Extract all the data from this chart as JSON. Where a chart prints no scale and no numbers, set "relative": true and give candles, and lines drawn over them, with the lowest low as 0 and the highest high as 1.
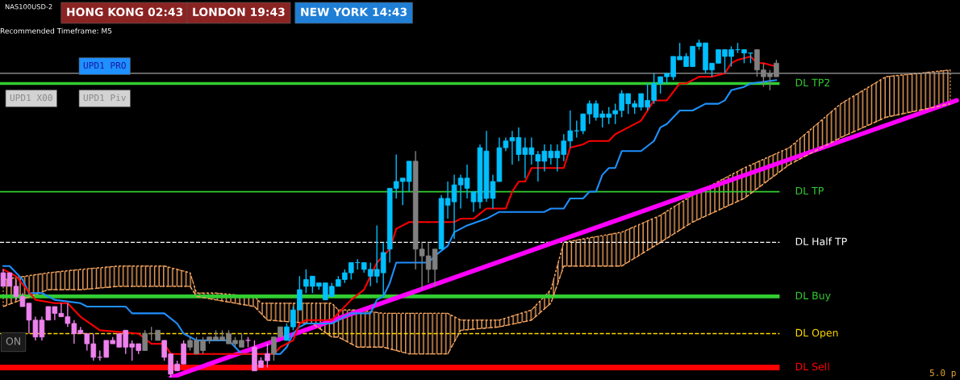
{
  "chart_data": {
    "type": "candlestick",
    "relative": true,
    "title": "NAS100USD-2",
    "annotations": [
      "Recommended Timeframe: M5",
      "HONG KONG 02:43",
      "LONDON 19:43",
      "NEW YORK 14:43",
      "UPD1 PRO",
      "UPD1 X00",
      "UPD1 Piv",
      "ON",
      "5.0 p"
    ],
    "categories": [
      null,
      null,
      null,
      null,
      null,
      null,
      null,
      null,
      null,
      null,
      null,
      null,
      null,
      null,
      null,
      null,
      null,
      null,
      null,
      null,
      null,
      null,
      null,
      null,
      null,
      null,
      null,
      null,
      null,
      null,
      null,
      null,
      null,
      null,
      null,
      null,
      null,
      null,
      null,
      null,
      null,
      null,
      null,
      null,
      null,
      null,
      null,
      null,
      null,
      null,
      null,
      null,
      null,
      null,
      null,
      null,
      null,
      null,
      null,
      null,
      null,
      null,
      null,
      null,
      null,
      null,
      null,
      null,
      null,
      null,
      null,
      null,
      null,
      null,
      null,
      null,
      null,
      null,
      null,
      null,
      null,
      null,
      null,
      null,
      null,
      null,
      null,
      null,
      null,
      null,
      null,
      null,
      null,
      null,
      null,
      null,
      null,
      null,
      null,
      null,
      null,
      null,
      null,
      null,
      null,
      null,
      null,
      null,
      null,
      null,
      null,
      null,
      null,
      null,
      null,
      null,
      null,
      null,
      null,
      null,
      null,
      null,
      null,
      null,
      null,
      null,
      null,
      null,
      null,
      null,
      null,
      null,
      null,
      null,
      null,
      null,
      null,
      null,
      null,
      null,
      null,
      null,
      null,
      null,
      null,
      null,
      null,
      null,
      null
    ],
    "ohlc": [
      [
        0.31,
        0.32,
        0.27,
        0.27
      ],
      [
        0.31,
        0.31,
        0.27,
        0.27
      ],
      [
        0.27,
        0.29,
        0.23,
        0.24
      ],
      [
        0.24,
        0.25,
        0.21,
        0.21
      ],
      [
        0.22,
        0.22,
        0.13,
        0.17
      ],
      [
        0.17,
        0.18,
        0.11,
        0.12
      ],
      [
        0.17,
        0.18,
        0.11,
        0.12
      ],
      [
        0.21,
        0.21,
        0.17,
        0.17
      ],
      [
        0.21,
        0.21,
        0.17,
        0.19
      ],
      [
        0.19,
        0.22,
        0.18,
        0.18
      ],
      [
        0.18,
        0.22,
        0.15,
        0.16
      ],
      [
        0.16,
        0.17,
        0.1,
        0.13
      ],
      [
        0.14,
        0.15,
        0.13,
        0.13
      ],
      [
        0.13,
        0.13,
        0.08,
        0.1
      ],
      [
        0.1,
        0.13,
        0.05,
        0.06
      ],
      [
        0.06,
        0.08,
        0.05,
        0.06
      ],
      [
        0.11,
        0.11,
        0.06,
        0.06
      ],
      [
        0.11,
        0.12,
        0.1,
        0.1
      ],
      [
        0.13,
        0.13,
        0.09,
        0.09
      ],
      [
        0.14,
        0.14,
        0.07,
        0.09
      ],
      [
        0.1,
        0.11,
        0.05,
        0.09
      ],
      [
        0.1,
        0.1,
        0.07,
        0.08
      ],
      [
        0.13,
        0.14,
        0.08,
        0.08
      ],
      [
        0.13,
        0.15,
        0.11,
        0.13
      ],
      [
        0.14,
        0.14,
        0.11,
        0.11
      ],
      [
        0.11,
        0.11,
        0.05,
        0.06
      ],
      [
        0.07,
        0.07,
        0.0,
        0.01
      ],
      [
        0.04,
        0.05,
        0.02,
        0.02
      ],
      [
        0.1,
        0.11,
        0.04,
        0.04
      ],
      [
        0.11,
        0.12,
        0.08,
        0.09
      ],
      [
        0.11,
        0.12,
        0.07,
        0.07
      ],
      [
        0.11,
        0.12,
        0.07,
        0.08
      ],
      [
        0.12,
        0.12,
        0.1,
        0.11
      ],
      [
        0.12,
        0.14,
        0.11,
        0.11
      ],
      [
        0.12,
        0.14,
        0.11,
        0.11
      ],
      [
        0.13,
        0.14,
        0.1,
        0.1
      ],
      [
        0.11,
        0.12,
        0.09,
        0.1
      ],
      [
        0.11,
        0.13,
        0.09,
        0.09
      ],
      [
        0.11,
        0.12,
        0.09,
        0.11
      ],
      [
        0.09,
        0.11,
        0.02,
        0.02
      ],
      [
        0.05,
        0.06,
        0.03,
        0.03
      ],
      [
        0.07,
        0.1,
        0.03,
        0.05
      ],
      [
        0.12,
        0.12,
        0.05,
        0.07
      ],
      [
        0.15,
        0.15,
        0.12,
        0.12
      ],
      [
        0.11,
        0.16,
        0.11,
        0.15
      ],
      [
        0.15,
        0.21,
        0.14,
        0.2
      ],
      [
        0.2,
        0.3,
        0.2,
        0.26
      ],
      [
        0.27,
        0.32,
        0.25,
        0.29
      ],
      [
        0.27,
        0.3,
        0.25,
        0.3
      ],
      [
        0.27,
        0.28,
        0.26,
        0.28
      ],
      [
        0.23,
        0.28,
        0.23,
        0.28
      ],
      [
        0.24,
        0.28,
        0.24,
        0.27
      ],
      [
        0.27,
        0.3,
        0.27,
        0.29
      ],
      [
        0.29,
        0.32,
        0.28,
        0.31
      ],
      [
        0.31,
        0.34,
        0.29,
        0.34
      ],
      [
        0.34,
        0.35,
        0.32,
        0.34
      ],
      [
        0.32,
        0.34,
        0.31,
        0.34
      ],
      [
        0.3,
        0.34,
        0.27,
        0.32
      ],
      [
        0.3,
        0.45,
        0.28,
        0.32
      ],
      [
        0.31,
        0.4,
        0.24,
        0.37
      ],
      [
        0.38,
        0.56,
        0.34,
        0.56
      ],
      [
        0.56,
        0.66,
        0.53,
        0.58
      ],
      [
        0.58,
        0.59,
        0.51,
        0.59
      ],
      [
        0.58,
        0.64,
        0.55,
        0.64
      ],
      [
        0.64,
        0.67,
        0.32,
        0.38
      ],
      [
        0.38,
        0.4,
        0.26,
        0.36
      ],
      [
        0.36,
        0.4,
        0.28,
        0.32
      ],
      [
        0.38,
        0.38,
        0.27,
        0.32
      ],
      [
        0.38,
        0.54,
        0.38,
        0.53
      ],
      [
        0.51,
        0.58,
        0.47,
        0.53
      ],
      [
        0.52,
        0.6,
        0.41,
        0.57
      ],
      [
        0.57,
        0.6,
        0.5,
        0.59
      ],
      [
        0.56,
        0.63,
        0.53,
        0.59
      ],
      [
        0.52,
        0.55,
        0.49,
        0.55
      ],
      [
        0.52,
        0.69,
        0.5,
        0.68
      ],
      [
        0.53,
        0.73,
        0.52,
        0.67
      ],
      [
        0.53,
        0.6,
        0.5,
        0.58
      ],
      [
        0.58,
        0.71,
        0.58,
        0.68
      ],
      [
        0.68,
        0.71,
        0.67,
        0.7
      ],
      [
        0.7,
        0.73,
        0.63,
        0.71
      ],
      [
        0.66,
        0.74,
        0.64,
        0.71
      ],
      [
        0.66,
        0.71,
        0.59,
        0.68
      ],
      [
        0.66,
        0.71,
        0.63,
        0.68
      ],
      [
        0.64,
        0.67,
        0.58,
        0.66
      ],
      [
        0.64,
        0.69,
        0.61,
        0.67
      ],
      [
        0.65,
        0.69,
        0.63,
        0.67
      ],
      [
        0.65,
        0.69,
        0.61,
        0.67
      ],
      [
        0.66,
        0.72,
        0.64,
        0.7
      ],
      [
        0.7,
        0.79,
        0.68,
        0.73
      ],
      [
        0.73,
        0.76,
        0.71,
        0.73
      ],
      [
        0.73,
        0.78,
        0.72,
        0.78
      ],
      [
        0.78,
        0.82,
        0.75,
        0.81
      ],
      [
        0.77,
        0.82,
        0.76,
        0.81
      ],
      [
        0.77,
        0.79,
        0.74,
        0.78
      ],
      [
        0.77,
        0.8,
        0.75,
        0.78
      ],
      [
        0.78,
        0.81,
        0.75,
        0.79
      ],
      [
        0.79,
        0.85,
        0.77,
        0.84
      ],
      [
        0.81,
        0.84,
        0.78,
        0.84
      ],
      [
        0.8,
        0.82,
        0.78,
        0.81
      ],
      [
        0.8,
        0.84,
        0.79,
        0.84
      ],
      [
        0.8,
        0.87,
        0.79,
        0.82
      ],
      [
        0.82,
        0.9,
        0.81,
        0.87
      ],
      [
        0.87,
        0.89,
        0.84,
        0.89
      ],
      [
        0.89,
        0.9,
        0.87,
        0.9
      ],
      [
        0.89,
        0.95,
        0.88,
        0.95
      ],
      [
        0.94,
        0.99,
        0.94,
        0.95
      ],
      [
        0.92,
        0.96,
        0.92,
        0.95
      ],
      [
        0.92,
        0.98,
        0.92,
        0.98
      ],
      [
        0.98,
        1.0,
        0.97,
        0.99
      ],
      [
        0.91,
        0.99,
        0.9,
        0.99
      ],
      [
        0.91,
        0.93,
        0.89,
        0.93
      ],
      [
        0.93,
        0.97,
        0.93,
        0.97
      ],
      [
        0.95,
        0.97,
        0.9,
        0.97
      ],
      [
        0.95,
        0.98,
        0.92,
        0.97
      ],
      [
        0.97,
        0.99,
        0.96,
        0.97
      ],
      [
        0.96,
        0.97,
        0.93,
        0.97
      ],
      [
        0.96,
        0.96,
        0.93,
        0.96
      ],
      [
        0.97,
        0.97,
        0.89,
        0.91
      ],
      [
        0.91,
        0.93,
        0.86,
        0.89
      ],
      [
        0.9,
        0.91,
        0.85,
        0.89
      ],
      [
        0.89,
        0.94,
        0.89,
        0.93
      ],
      null,
      null,
      null,
      null,
      null,
      null,
      null,
      null,
      null,
      null,
      null,
      null,
      null,
      null,
      null,
      null,
      null,
      null,
      null,
      null,
      null,
      null,
      null,
      null,
      null,
      null,
      null,
      null
    ],
    "colors": [
      "#ee82ee",
      "#ee82ee",
      "#ee82ee",
      "#ee82ee",
      "#ee82ee",
      "#ee82ee",
      "#ee82ee",
      "#ee82ee",
      "#ee82ee",
      "#ee82ee",
      "#ee82ee",
      "#ee82ee",
      "#ee82ee",
      "#ee82ee",
      "#ee82ee",
      "#ee82ee",
      "#ee82ee",
      "#ee82ee",
      "#ee82ee",
      "#ee82ee",
      "#ee82ee",
      "#ee82ee",
      "#808080",
      "#808080",
      "#808080",
      "#ee82ee",
      "#ee82ee",
      "#ee82ee",
      "#ee82ee",
      "#808080",
      "#808080",
      "#808080",
      "#808080",
      "#808080",
      "#808080",
      "#808080",
      "#808080",
      "#808080",
      "#ee82ee",
      "#ee82ee",
      "#ee82ee",
      "#ee82ee",
      "#808080",
      "#808080",
      "#00bfff",
      "#00bfff",
      "#00bfff",
      "#00bfff",
      "#00bfff",
      "#00bfff",
      "#00bfff",
      "#00bfff",
      "#00bfff",
      "#00bfff",
      "#00bfff",
      "#00bfff",
      "#00bfff",
      "#00bfff",
      "#00bfff",
      "#00bfff",
      "#00bfff",
      "#00bfff",
      "#00bfff",
      "#00bfff",
      "#808080",
      "#808080",
      "#808080",
      "#808080",
      "#00bfff",
      "#00bfff",
      "#00bfff",
      "#00bfff",
      "#00bfff",
      "#00bfff",
      "#00bfff",
      "#00bfff",
      "#00bfff",
      "#00bfff",
      "#00bfff",
      "#00bfff",
      "#00bfff",
      "#00bfff",
      "#00bfff",
      "#00bfff",
      "#00bfff",
      "#00bfff",
      "#00bfff",
      "#00bfff",
      "#00bfff",
      "#00bfff",
      "#00bfff",
      "#00bfff",
      "#00bfff",
      "#00bfff",
      "#00bfff",
      "#00bfff",
      "#00bfff",
      "#00bfff",
      "#00bfff",
      "#00bfff",
      "#00bfff",
      "#00bfff",
      "#00bfff",
      "#00bfff",
      "#00bfff",
      "#00bfff",
      "#00bfff",
      "#00bfff",
      "#00bfff",
      "#00bfff",
      "#00bfff",
      "#00bfff",
      "#00bfff",
      "#00bfff",
      "#00bfff",
      "#00bfff",
      "#00bfff",
      "#808080",
      "#808080",
      "#808080",
      "#808080",
      null,
      null,
      null,
      null,
      null,
      null,
      null,
      null,
      null,
      null,
      null,
      null,
      null,
      null,
      null,
      null,
      null,
      null,
      null,
      null,
      null,
      null,
      null,
      null,
      null,
      null,
      null,
      null
    ],
    "series": [
      {
        "type": "area",
        "color": "#f4a460",
        "values": [
          0.29,
          null,
          null,
          null,
          null,
          null,
          null,
          0.31,
          null,
          null,
          null,
          null,
          0.32,
          null,
          null,
          null,
          null,
          null,
          0.33,
          null,
          null,
          null,
          null,
          null,
          null,
          0.33,
          null,
          null,
          null,
          0.31,
          0.25,
          null,
          null,
          0.25,
          null,
          null,
          null,
          null,
          null,
          0.24,
          0.22,
          0.22,
          null,
          null,
          null,
          null,
          null,
          null,
          0.22,
          null,
          null,
          0.22,
          0.2,
          null,
          null,
          0.2,
          null,
          null,
          null,
          0.19,
          null,
          null,
          null,
          0.19,
          null,
          null,
          null,
          null,
          null,
          0.19,
          null,
          0.17,
          null,
          null,
          null,
          null,
          null,
          0.17,
          null,
          null,
          null,
          null,
          0.2,
          null,
          null,
          0.26,
          null,
          0.4,
          null,
          null,
          null,
          null,
          null,
          null,
          null,
          null,
          0.43,
          null,
          null,
          null,
          null,
          null,
          0.48,
          null,
          null,
          null,
          null,
          0.54,
          null,
          null,
          null,
          null,
          null,
          null,
          null,
          0.62,
          null,
          null,
          null,
          null,
          null,
          null,
          0.68,
          null,
          null,
          null,
          null,
          null,
          null,
          null,
          0.81,
          null,
          null,
          null,
          null,
          null,
          null,
          0.89,
          null,
          null,
          null,
          null,
          null,
          null,
          null,
          null,
          null,
          0.91,
          null
        ]
      },
      {
        "type": "line",
        "color": "#f4a460",
        "line_style": "dashed",
        "values": [
          0.21,
          null,
          null,
          null,
          null,
          null,
          null,
          0.26,
          null,
          null,
          null,
          null,
          0.26,
          null,
          null,
          null,
          null,
          null,
          0.27,
          null,
          null,
          null,
          null,
          null,
          null,
          0.27,
          null,
          null,
          null,
          0.27,
          0.24,
          null,
          null,
          0.23,
          null,
          null,
          null,
          null,
          null,
          0.21,
          0.19,
          0.17,
          null,
          null,
          null,
          null,
          null,
          null,
          0.16,
          null,
          null,
          0.12,
          0.12,
          null,
          null,
          0.09,
          null,
          null,
          null,
          0.09,
          null,
          null,
          null,
          0.07,
          null,
          null,
          null,
          null,
          null,
          0.07,
          null,
          0.14,
          null,
          null,
          null,
          null,
          null,
          0.15,
          null,
          null,
          null,
          null,
          0.17,
          null,
          null,
          0.22,
          null,
          0.33,
          null,
          null,
          null,
          null,
          null,
          null,
          null,
          null,
          0.33,
          null,
          null,
          null,
          null,
          null,
          0.4,
          null,
          null,
          null,
          null,
          0.46,
          null,
          null,
          null,
          null,
          null,
          null,
          null,
          0.53,
          null,
          null,
          null,
          null,
          null,
          null,
          0.63,
          null,
          null,
          null,
          null,
          null,
          null,
          null,
          0.71,
          null,
          null,
          null,
          null,
          null,
          null,
          0.77,
          null,
          null,
          null,
          null,
          null,
          null,
          null,
          null,
          null,
          0.81,
          null
        ]
      },
      {
        "type": "line",
        "color": "#ff00ff",
        "values": [
          null,
          null,
          null,
          null,
          null,
          null,
          null,
          null,
          null,
          null,
          null,
          null,
          null,
          null,
          null,
          null,
          null,
          null,
          null,
          null,
          null,
          null,
          null,
          null,
          null,
          null,
          0.0,
          null,
          null,
          null,
          null,
          null,
          null,
          null,
          null,
          null,
          null,
          null,
          null,
          null,
          null,
          null,
          null,
          null,
          null,
          null,
          null,
          null,
          null,
          null,
          null,
          null,
          null,
          null,
          null,
          null,
          null,
          null,
          null,
          null,
          null,
          null,
          null,
          null,
          null,
          null,
          null,
          null,
          null,
          null,
          null,
          null,
          null,
          null,
          null,
          null,
          null,
          null,
          null,
          null,
          null,
          null,
          null,
          null,
          null,
          null,
          null,
          null,
          null,
          null,
          null,
          null,
          null,
          null,
          null,
          null,
          null,
          null,
          null,
          null,
          null,
          null,
          null,
          null,
          null,
          null,
          null,
          null,
          null,
          null,
          null,
          null,
          null,
          null,
          null,
          null,
          null,
          null,
          null,
          null,
          null,
          null,
          null,
          null,
          null,
          null,
          null,
          null,
          null,
          null,
          null,
          null,
          null,
          null,
          null,
          null,
          null,
          null,
          null,
          null,
          null,
          null,
          null,
          null,
          null,
          null,
          null,
          null,
          0.82
        ]
      },
      {
        "type": "line",
        "color": "#1e90ff",
        "values": [
          0.33,
          0.33,
          0.31,
          0.29,
          0.25,
          null,
          0.25,
          0.24,
          0.23,
          null,
          null,
          null,
          0.22,
          0.21,
          null,
          null,
          null,
          null,
          null,
          0.21,
          0.19,
          null,
          null,
          null,
          0.19,
          0.19,
          null,
          0.16,
          0.13,
          null,
          0.11,
          null,
          null,
          null,
          null,
          0.11,
          0.09,
          0.07,
          null,
          null,
          null,
          null,
          null,
          0.07,
          0.09,
          0.13,
          0.15,
          0.16,
          null,
          null,
          null,
          0.16,
          null,
          0.18,
          0.19,
          null,
          null,
          0.19,
          0.23,
          0.24,
          0.28,
          0.34,
          null,
          null,
          null,
          null,
          0.34,
          0.36,
          null,
          0.39,
          0.43,
          null,
          0.45,
          null,
          null,
          0.47,
          null,
          0.49,
          null,
          null,
          0.49,
          null,
          null,
          null,
          0.49,
          0.5,
          null,
          0.5,
          0.53,
          null,
          0.53,
          0.55,
          0.55,
          0.6,
          0.62,
          0.62,
          0.67,
          null,
          null,
          0.67,
          null,
          0.7,
          0.74,
          0.75,
          null,
          0.79,
          null,
          0.79,
          null,
          0.81,
          null,
          0.81,
          0.82,
          0.85,
          null,
          0.86,
          0.87,
          null,
          null,
          null,
          0.88,
          null,
          null,
          null,
          null,
          null,
          null,
          null,
          null,
          null,
          null,
          null,
          null,
          null,
          null,
          null,
          null,
          null,
          null,
          null,
          null,
          null,
          null,
          null,
          null,
          null,
          null,
          null,
          null
        ]
      },
      {
        "type": "line",
        "color": "#ff0000",
        "values": [
          0.32,
          null,
          0.3,
          null,
          null,
          0.23,
          null,
          null,
          0.22,
          null,
          0.22,
          0.2,
          0.18,
          null,
          null,
          0.14,
          null,
          null,
          null,
          null,
          null,
          0.13,
          null,
          0.1,
          null,
          0.1,
          0.07,
          null,
          null,
          null,
          null,
          null,
          null,
          null,
          null,
          null,
          null,
          null,
          null,
          null,
          null,
          null,
          0.07,
          0.09,
          null,
          0.11,
          0.16,
          0.17,
          null,
          null,
          null,
          0.17,
          0.19,
          null,
          0.23,
          null,
          0.26,
          0.3,
          0.34,
          null,
          0.38,
          0.44,
          null,
          0.46,
          null,
          null,
          null,
          null,
          null,
          null,
          0.46,
          0.47,
          null,
          0.47,
          null,
          0.5,
          null,
          null,
          0.5,
          0.55,
          0.58,
          0.58,
          0.62,
          null,
          null,
          null,
          null,
          0.62,
          0.68,
          null,
          0.69,
          0.7,
          null,
          null,
          0.7,
          0.72,
          0.73,
          null,
          null,
          0.76,
          null,
          0.82,
          null,
          0.82,
          null,
          0.87,
          0.87,
          null,
          0.89,
          null,
          0.89,
          null,
          0.9,
          0.93,
          0.94,
          null,
          0.95,
          0.93,
          0.93,
          null,
          0.92,
          null,
          null,
          null,
          null,
          null,
          null,
          null,
          null,
          null,
          null,
          null,
          null,
          null,
          null,
          null,
          null,
          null,
          null,
          null,
          null,
          null,
          null,
          null,
          null,
          null,
          null,
          null,
          null
        ]
      }
    ],
    "ref_lines": [
      {
        "axis": "y",
        "value": 0.87,
        "label": "DL TP2",
        "color": "#32cd32"
      },
      {
        "axis": "y",
        "value": 0.55,
        "label": "DL TP",
        "color": "#32cd32"
      },
      {
        "axis": "y",
        "value": 0.4,
        "label": "DL Half TP",
        "color": "#ffffff",
        "line_style": "dashed"
      },
      {
        "axis": "y",
        "value": 0.24,
        "label": "DL Buy",
        "color": "#32cd32"
      },
      {
        "axis": "y",
        "value": 0.13,
        "label": "DL Open",
        "color": "#ffd700",
        "line_style": "dashed"
      },
      {
        "axis": "y",
        "value": 0.03,
        "label": "DL Sell",
        "color": "#ff0000"
      },
      {
        "axis": "y",
        "value": 0.9,
        "color": "#a0a0a0"
      }
    ]
  }
}
